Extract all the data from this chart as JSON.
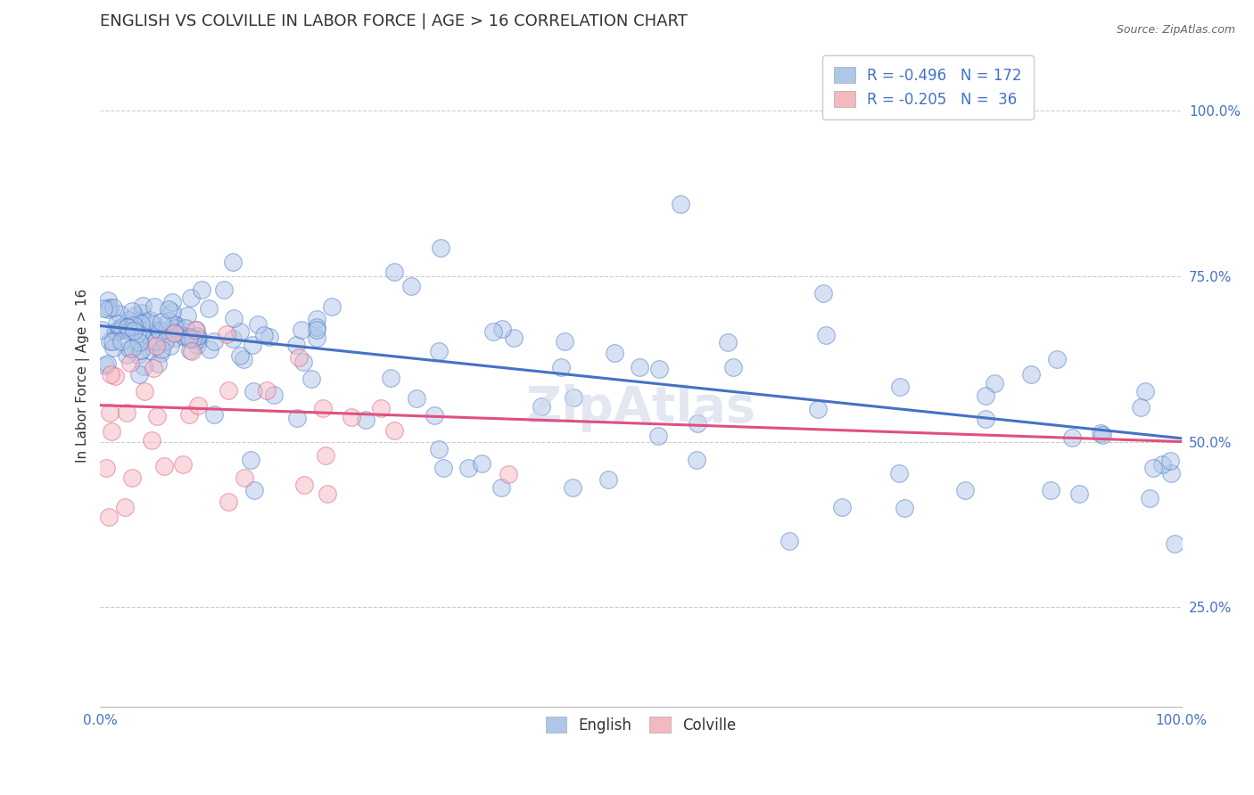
{
  "title": "ENGLISH VS COLVILLE IN LABOR FORCE | AGE > 16 CORRELATION CHART",
  "source": "Source: ZipAtlas.com",
  "ylabel": "In Labor Force | Age > 16",
  "xlim": [
    0.0,
    1.0
  ],
  "ylim": [
    0.1,
    1.1
  ],
  "english_R": -0.496,
  "english_N": 172,
  "colville_R": -0.205,
  "colville_N": 36,
  "english_color": "#aec6e8",
  "colville_color": "#f4b8c1",
  "english_line_color": "#4472c4",
  "colville_line_color": "#e05080",
  "tick_color": "#4472c4",
  "title_color": "#333333",
  "background_color": "#ffffff",
  "grid_color": "#cccccc",
  "yticks": [
    0.25,
    0.5,
    0.75,
    1.0
  ],
  "ytick_labels": [
    "25.0%",
    "50.0%",
    "75.0%",
    "100.0%"
  ],
  "xticks": [
    0.0,
    1.0
  ],
  "xtick_labels": [
    "0.0%",
    "100.0%"
  ]
}
